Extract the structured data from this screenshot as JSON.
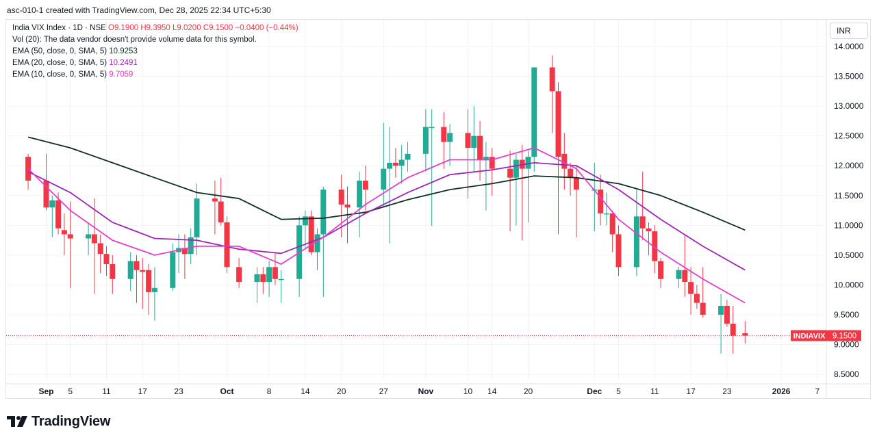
{
  "caption": "asc-010-1 created with TradingView.com, Dec 28, 2025 22:34 UTC+5:30",
  "currency": "INR",
  "legend": {
    "symbol": "India VIX Index · 1D · NSE",
    "open": "O9.1900",
    "high": "H9.3950",
    "low": "L9.0200",
    "close": "C9.1500",
    "change": "−0.0400 (−0.44%)",
    "volume": "Vol (20): The data vendor doesn't provide volume data for this symbol.",
    "ema50_label": "EMA (50, close, 0, SMA, 5)",
    "ema50_value": "10.9253",
    "ema20_label": "EMA (20, close, 0, SMA, 5)",
    "ema20_value": "10.2491",
    "ema10_label": "EMA (10, close, 0, SMA, 5)",
    "ema10_value": "9.7059"
  },
  "brand": "TradingView",
  "colors": {
    "up": "#22ab94",
    "down": "#f23645",
    "ema50": "#0f2e24",
    "ema20": "#9c27b0",
    "ema10": "#e040c8",
    "grid": "#f0f3fa",
    "price_line": "#f23645"
  },
  "chart_data": {
    "type": "candlestick",
    "symbol_tag": "INDIAVIX",
    "last_price": "9.1500",
    "y_ticks": [
      "14.0000",
      "13.5000",
      "13.0000",
      "12.5000",
      "12.0000",
      "11.5000",
      "11.0000",
      "10.5000",
      "10.0000",
      "9.5000",
      "9.0000",
      "8.5000"
    ],
    "ylim": [
      8.45,
      14.2
    ],
    "x_ticks": [
      {
        "label": "Sep",
        "date": "2025-09-01"
      },
      {
        "label": "5",
        "date": "2025-09-05"
      },
      {
        "label": "11",
        "date": "2025-09-11"
      },
      {
        "label": "17",
        "date": "2025-09-17"
      },
      {
        "label": "23",
        "date": "2025-09-23"
      },
      {
        "label": "Oct",
        "date": "2025-10-01"
      },
      {
        "label": "8",
        "date": "2025-10-08"
      },
      {
        "label": "14",
        "date": "2025-10-14"
      },
      {
        "label": "20",
        "date": "2025-10-20"
      },
      {
        "label": "27",
        "date": "2025-10-27"
      },
      {
        "label": "Nov",
        "date": "2025-11-03"
      },
      {
        "label": "10",
        "date": "2025-11-10"
      },
      {
        "label": "14",
        "date": "2025-11-14"
      },
      {
        "label": "20",
        "date": "2025-11-20"
      },
      {
        "label": "Dec",
        "date": "2025-12-01"
      },
      {
        "label": "5",
        "date": "2025-12-05"
      },
      {
        "label": "11",
        "date": "2025-12-11"
      },
      {
        "label": "17",
        "date": "2025-12-17"
      },
      {
        "label": "23",
        "date": "2025-12-23"
      },
      {
        "label": "2026",
        "date": "2026-01-01"
      },
      {
        "label": "7",
        "date": "2026-01-07"
      }
    ],
    "candles": [
      {
        "date": "2025-08-29",
        "o": 12.15,
        "h": 12.2,
        "l": 11.6,
        "c": 11.75
      },
      {
        "date": "2025-09-01",
        "o": 11.75,
        "h": 12.2,
        "l": 11.25,
        "c": 11.3
      },
      {
        "date": "2025-09-02",
        "o": 11.3,
        "h": 11.5,
        "l": 10.8,
        "c": 11.42
      },
      {
        "date": "2025-09-03",
        "o": 11.42,
        "h": 11.55,
        "l": 10.85,
        "c": 10.95
      },
      {
        "date": "2025-09-04",
        "o": 10.92,
        "h": 11.2,
        "l": 10.5,
        "c": 10.85
      },
      {
        "date": "2025-09-05",
        "o": 10.85,
        "h": 11.4,
        "l": 9.95,
        "c": 10.78
      },
      {
        "date": "2025-09-08",
        "o": 10.78,
        "h": 11.05,
        "l": 10.5,
        "c": 10.85
      },
      {
        "date": "2025-09-09",
        "o": 10.85,
        "h": 11.45,
        "l": 9.85,
        "c": 10.7
      },
      {
        "date": "2025-09-10",
        "o": 10.7,
        "h": 10.85,
        "l": 10.2,
        "c": 10.52
      },
      {
        "date": "2025-09-11",
        "o": 10.52,
        "h": 10.65,
        "l": 10.15,
        "c": 10.35
      },
      {
        "date": "2025-09-12",
        "o": 10.35,
        "h": 10.5,
        "l": 9.85,
        "c": 10.1
      },
      {
        "date": "2025-09-15",
        "o": 10.1,
        "h": 10.55,
        "l": 9.9,
        "c": 10.4
      },
      {
        "date": "2025-09-16",
        "o": 10.4,
        "h": 10.5,
        "l": 9.7,
        "c": 10.25
      },
      {
        "date": "2025-09-17",
        "o": 10.25,
        "h": 10.45,
        "l": 9.6,
        "c": 10.22
      },
      {
        "date": "2025-09-18",
        "o": 10.25,
        "h": 10.35,
        "l": 9.5,
        "c": 9.88
      },
      {
        "date": "2025-09-19",
        "o": 9.88,
        "h": 10.3,
        "l": 9.4,
        "c": 9.95
      },
      {
        "date": "2025-09-22",
        "o": 9.95,
        "h": 10.7,
        "l": 9.9,
        "c": 10.55
      },
      {
        "date": "2025-09-23",
        "o": 10.55,
        "h": 10.85,
        "l": 10.2,
        "c": 10.62
      },
      {
        "date": "2025-09-24",
        "o": 10.62,
        "h": 10.85,
        "l": 10.1,
        "c": 10.52
      },
      {
        "date": "2025-09-25",
        "o": 10.52,
        "h": 10.95,
        "l": 10.35,
        "c": 10.8
      },
      {
        "date": "2025-09-26",
        "o": 10.8,
        "h": 11.7,
        "l": 10.5,
        "c": 11.45
      },
      {
        "date": "2025-09-29",
        "o": 11.45,
        "h": 11.75,
        "l": 10.85,
        "c": 11.4
      },
      {
        "date": "2025-09-30",
        "o": 11.4,
        "h": 11.8,
        "l": 11.0,
        "c": 11.05
      },
      {
        "date": "2025-10-01",
        "o": 11.05,
        "h": 11.15,
        "l": 10.2,
        "c": 10.3
      },
      {
        "date": "2025-10-03",
        "o": 10.3,
        "h": 10.45,
        "l": 9.95,
        "c": 10.05
      },
      {
        "date": "2025-10-06",
        "o": 10.05,
        "h": 10.3,
        "l": 9.7,
        "c": 10.18
      },
      {
        "date": "2025-10-07",
        "o": 10.18,
        "h": 10.3,
        "l": 9.85,
        "c": 10.05
      },
      {
        "date": "2025-10-08",
        "o": 10.05,
        "h": 10.4,
        "l": 9.8,
        "c": 10.3
      },
      {
        "date": "2025-10-09",
        "o": 10.3,
        "h": 10.55,
        "l": 10.0,
        "c": 10.1
      },
      {
        "date": "2025-10-10",
        "o": 10.1,
        "h": 10.25,
        "l": 9.7,
        "c": 10.1
      },
      {
        "date": "2025-10-13",
        "o": 10.1,
        "h": 11.15,
        "l": 9.8,
        "c": 11.0
      },
      {
        "date": "2025-10-14",
        "o": 11.0,
        "h": 11.25,
        "l": 10.6,
        "c": 11.15
      },
      {
        "date": "2025-10-15",
        "o": 11.15,
        "h": 11.25,
        "l": 10.5,
        "c": 10.55
      },
      {
        "date": "2025-10-16",
        "o": 10.55,
        "h": 10.95,
        "l": 10.25,
        "c": 10.85
      },
      {
        "date": "2025-10-17",
        "o": 10.85,
        "h": 11.65,
        "l": 9.8,
        "c": 11.6
      },
      {
        "date": "2025-10-20",
        "o": 11.6,
        "h": 11.85,
        "l": 10.8,
        "c": 11.35
      },
      {
        "date": "2025-10-21",
        "o": 11.35,
        "h": 11.65,
        "l": 10.7,
        "c": 11.3
      },
      {
        "date": "2025-10-23",
        "o": 11.3,
        "h": 11.9,
        "l": 10.8,
        "c": 11.75
      },
      {
        "date": "2025-10-24",
        "o": 11.75,
        "h": 12.0,
        "l": 11.25,
        "c": 11.6
      },
      {
        "date": "2025-10-27",
        "o": 11.6,
        "h": 12.72,
        "l": 11.3,
        "c": 11.95
      },
      {
        "date": "2025-10-28",
        "o": 11.95,
        "h": 12.65,
        "l": 10.7,
        "c": 12.05
      },
      {
        "date": "2025-10-29",
        "o": 12.05,
        "h": 12.3,
        "l": 11.8,
        "c": 12.0
      },
      {
        "date": "2025-10-30",
        "o": 12.0,
        "h": 12.35,
        "l": 11.7,
        "c": 12.1
      },
      {
        "date": "2025-10-31",
        "o": 12.1,
        "h": 12.4,
        "l": 11.9,
        "c": 12.2
      },
      {
        "date": "2025-11-03",
        "o": 12.2,
        "h": 12.95,
        "l": 11.9,
        "c": 12.65
      },
      {
        "date": "2025-11-04",
        "o": 12.65,
        "h": 12.95,
        "l": 10.99,
        "c": 12.65
      },
      {
        "date": "2025-11-06",
        "o": 12.65,
        "h": 12.9,
        "l": 11.95,
        "c": 12.4
      },
      {
        "date": "2025-11-07",
        "o": 12.4,
        "h": 12.7,
        "l": 12.0,
        "c": 12.55
      },
      {
        "date": "2025-11-10",
        "o": 12.55,
        "h": 12.95,
        "l": 11.45,
        "c": 12.3
      },
      {
        "date": "2025-11-11",
        "o": 12.3,
        "h": 13.0,
        "l": 11.9,
        "c": 12.5
      },
      {
        "date": "2025-11-12",
        "o": 12.5,
        "h": 12.75,
        "l": 11.75,
        "c": 12.1
      },
      {
        "date": "2025-11-13",
        "o": 12.1,
        "h": 12.4,
        "l": 11.25,
        "c": 12.15
      },
      {
        "date": "2025-11-14",
        "o": 12.15,
        "h": 12.3,
        "l": 11.5,
        "c": 11.95
      },
      {
        "date": "2025-11-17",
        "o": 11.95,
        "h": 12.25,
        "l": 10.9,
        "c": 11.8
      },
      {
        "date": "2025-11-18",
        "o": 11.8,
        "h": 12.2,
        "l": 11.0,
        "c": 12.1
      },
      {
        "date": "2025-11-19",
        "o": 12.1,
        "h": 12.35,
        "l": 10.75,
        "c": 11.95
      },
      {
        "date": "2025-11-20",
        "o": 11.95,
        "h": 12.25,
        "l": 11.05,
        "c": 12.15
      },
      {
        "date": "2025-11-21",
        "o": 12.15,
        "h": 13.65,
        "l": 11.9,
        "c": 13.65
      },
      {
        "date": "2025-11-24",
        "o": 13.65,
        "h": 13.85,
        "l": 12.55,
        "c": 13.25
      },
      {
        "date": "2025-11-25",
        "o": 13.25,
        "h": 13.4,
        "l": 10.85,
        "c": 12.15
      },
      {
        "date": "2025-11-26",
        "o": 12.2,
        "h": 12.55,
        "l": 11.6,
        "c": 11.95
      },
      {
        "date": "2025-11-27",
        "o": 11.95,
        "h": 12.05,
        "l": 11.5,
        "c": 11.8
      },
      {
        "date": "2025-11-28",
        "o": 11.8,
        "h": 12.0,
        "l": 10.8,
        "c": 11.6
      },
      {
        "date": "2025-12-01",
        "o": 11.6,
        "h": 12.05,
        "l": 10.9,
        "c": 11.6
      },
      {
        "date": "2025-12-02",
        "o": 11.6,
        "h": 11.85,
        "l": 11.0,
        "c": 11.2
      },
      {
        "date": "2025-12-03",
        "o": 11.2,
        "h": 11.55,
        "l": 11.0,
        "c": 11.2
      },
      {
        "date": "2025-12-04",
        "o": 11.2,
        "h": 11.25,
        "l": 10.55,
        "c": 10.85
      },
      {
        "date": "2025-12-05",
        "o": 10.85,
        "h": 11.0,
        "l": 10.15,
        "c": 10.3
      },
      {
        "date": "2025-12-08",
        "o": 10.3,
        "h": 11.6,
        "l": 10.15,
        "c": 11.15
      },
      {
        "date": "2025-12-09",
        "o": 11.15,
        "h": 11.9,
        "l": 10.75,
        "c": 10.95
      },
      {
        "date": "2025-12-10",
        "o": 10.95,
        "h": 11.05,
        "l": 10.5,
        "c": 10.9
      },
      {
        "date": "2025-12-11",
        "o": 10.9,
        "h": 11.0,
        "l": 10.2,
        "c": 10.4
      },
      {
        "date": "2025-12-12",
        "o": 10.4,
        "h": 10.45,
        "l": 9.95,
        "c": 10.1
      },
      {
        "date": "2025-12-15",
        "o": 10.1,
        "h": 10.3,
        "l": 9.95,
        "c": 10.25
      },
      {
        "date": "2025-12-16",
        "o": 10.25,
        "h": 10.85,
        "l": 9.8,
        "c": 10.05
      },
      {
        "date": "2025-12-17",
        "o": 10.05,
        "h": 10.3,
        "l": 9.5,
        "c": 9.85
      },
      {
        "date": "2025-12-18",
        "o": 9.85,
        "h": 10.0,
        "l": 9.6,
        "c": 9.7
      },
      {
        "date": "2025-12-19",
        "o": 9.7,
        "h": 10.3,
        "l": 9.45,
        "c": 9.5
      },
      {
        "date": "2025-12-22",
        "o": 9.5,
        "h": 9.85,
        "l": 8.85,
        "c": 9.65
      },
      {
        "date": "2025-12-23",
        "o": 9.65,
        "h": 9.75,
        "l": 9.3,
        "c": 9.35
      },
      {
        "date": "2025-12-24",
        "o": 9.35,
        "h": 9.65,
        "l": 8.85,
        "c": 9.15
      },
      {
        "date": "2025-12-26",
        "o": 9.19,
        "h": 9.395,
        "l": 9.02,
        "c": 9.15
      }
    ],
    "series": [
      {
        "name": "EMA (50, close, 0, SMA, 5)",
        "x_dates": [
          "2025-08-29",
          "2025-09-05",
          "2025-09-12",
          "2025-09-19",
          "2025-09-26",
          "2025-10-03",
          "2025-10-10",
          "2025-10-17",
          "2025-10-24",
          "2025-10-31",
          "2025-11-07",
          "2025-11-14",
          "2025-11-21",
          "2025-11-28",
          "2025-12-05",
          "2025-12-12",
          "2025-12-19",
          "2025-12-26"
        ],
        "values": [
          12.48,
          12.3,
          12.05,
          11.8,
          11.55,
          11.45,
          11.1,
          11.12,
          11.22,
          11.43,
          11.6,
          11.7,
          11.83,
          11.8,
          11.7,
          11.5,
          11.22,
          10.92
        ]
      },
      {
        "name": "EMA (20, close, 0, SMA, 5)",
        "x_dates": [
          "2025-08-29",
          "2025-09-05",
          "2025-09-12",
          "2025-09-19",
          "2025-09-26",
          "2025-10-03",
          "2025-10-10",
          "2025-10-17",
          "2025-10-24",
          "2025-10-31",
          "2025-11-07",
          "2025-11-14",
          "2025-11-21",
          "2025-11-28",
          "2025-12-05",
          "2025-12-12",
          "2025-12-19",
          "2025-12-26"
        ],
        "values": [
          11.9,
          11.55,
          11.05,
          10.78,
          10.75,
          10.6,
          10.53,
          10.8,
          11.2,
          11.55,
          11.85,
          11.93,
          12.05,
          12.0,
          11.6,
          11.1,
          10.65,
          10.25
        ]
      },
      {
        "name": "EMA (10, close, 0, SMA, 5)",
        "x_dates": [
          "2025-08-29",
          "2025-09-05",
          "2025-09-12",
          "2025-09-19",
          "2025-09-26",
          "2025-10-03",
          "2025-10-10",
          "2025-10-17",
          "2025-10-24",
          "2025-10-31",
          "2025-11-07",
          "2025-11-14",
          "2025-11-21",
          "2025-11-28",
          "2025-12-05",
          "2025-12-12",
          "2025-12-19",
          "2025-12-26"
        ],
        "values": [
          11.95,
          11.25,
          10.75,
          10.5,
          10.65,
          10.65,
          10.35,
          10.8,
          11.35,
          11.8,
          12.1,
          12.1,
          12.3,
          11.95,
          11.1,
          10.55,
          10.1,
          9.7
        ]
      }
    ]
  }
}
